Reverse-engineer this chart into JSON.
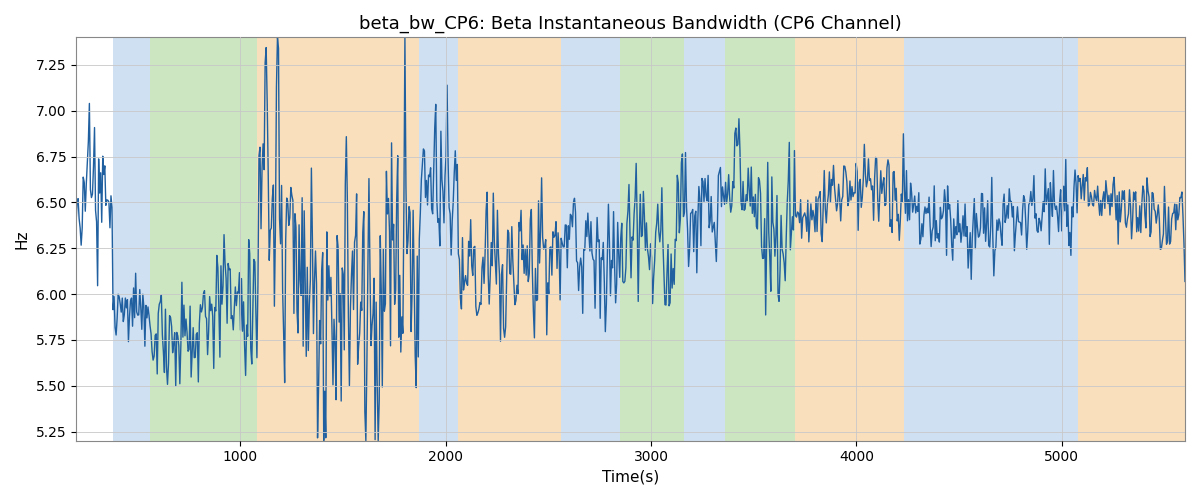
{
  "title": "beta_bw_CP6: Beta Instantaneous Bandwidth (CP6 Channel)",
  "xlabel": "Time(s)",
  "ylabel": "Hz",
  "xlim": [
    200,
    5600
  ],
  "ylim": [
    5.2,
    7.4
  ],
  "yticks": [
    5.25,
    5.5,
    5.75,
    6.0,
    6.25,
    6.5,
    6.75,
    7.0,
    7.25
  ],
  "xticks": [
    1000,
    2000,
    3000,
    4000,
    5000
  ],
  "line_color": "#2060a0",
  "line_width": 1.0,
  "bg_color": "#ffffff",
  "grid_color": "#c8c8c8",
  "title_fontsize": 13,
  "axis_fontsize": 11,
  "bands": [
    {
      "xmin": 380,
      "xmax": 560,
      "color": "#a8c8e8",
      "alpha": 0.55
    },
    {
      "xmin": 560,
      "xmax": 1080,
      "color": "#90c878",
      "alpha": 0.45
    },
    {
      "xmin": 1080,
      "xmax": 1870,
      "color": "#f5c07a",
      "alpha": 0.5
    },
    {
      "xmin": 1870,
      "xmax": 2060,
      "color": "#a8c8e8",
      "alpha": 0.55
    },
    {
      "xmin": 2060,
      "xmax": 2560,
      "color": "#f5c07a",
      "alpha": 0.5
    },
    {
      "xmin": 2560,
      "xmax": 2850,
      "color": "#a8c8e8",
      "alpha": 0.55
    },
    {
      "xmin": 2850,
      "xmax": 3160,
      "color": "#90c878",
      "alpha": 0.45
    },
    {
      "xmin": 3160,
      "xmax": 3360,
      "color": "#a8c8e8",
      "alpha": 0.55
    },
    {
      "xmin": 3360,
      "xmax": 3700,
      "color": "#90c878",
      "alpha": 0.45
    },
    {
      "xmin": 3700,
      "xmax": 4230,
      "color": "#f5c07a",
      "alpha": 0.5
    },
    {
      "xmin": 4230,
      "xmax": 5080,
      "color": "#a8c8e8",
      "alpha": 0.55
    },
    {
      "xmin": 5080,
      "xmax": 5600,
      "color": "#f5c07a",
      "alpha": 0.5
    }
  ],
  "t_start": 200,
  "t_end": 5600,
  "n_points": 1080,
  "seed": 7
}
